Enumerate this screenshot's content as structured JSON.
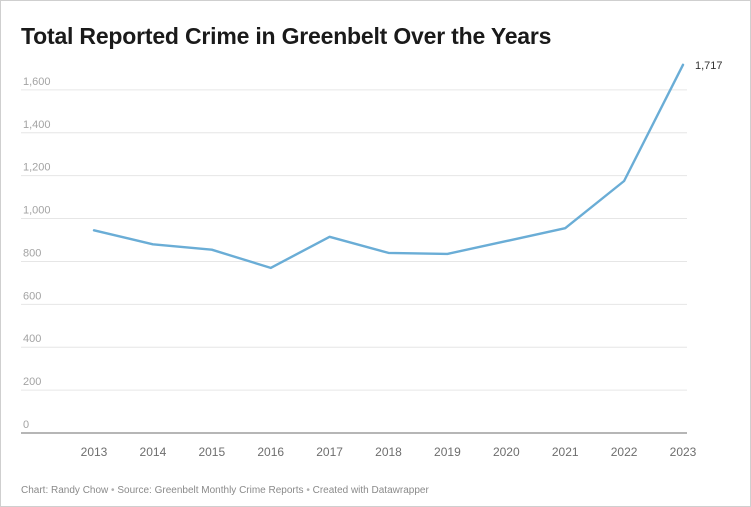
{
  "chart_data": {
    "type": "line",
    "title": "Total Reported Crime in Greenbelt Over the Years",
    "xlabel": "",
    "ylabel": "",
    "x": [
      "2013",
      "2014",
      "2015",
      "2016",
      "2017",
      "2018",
      "2019",
      "2020",
      "2021",
      "2022",
      "2023"
    ],
    "series": [
      {
        "values": [
          945,
          880,
          855,
          770,
          915,
          840,
          835,
          895,
          955,
          1175,
          1717
        ],
        "color": "#6aadd6"
      }
    ],
    "ylim": [
      0,
      1800
    ],
    "yticks": [
      0,
      200,
      400,
      600,
      800,
      1000,
      1200,
      1400,
      1600
    ],
    "ytick_labels": [
      "0",
      "200",
      "400",
      "600",
      "800",
      "1,000",
      "1,200",
      "1,400",
      "1,600"
    ],
    "grid": true,
    "annotations": [
      {
        "x": "2023",
        "text": "1,717"
      }
    ]
  },
  "footer": {
    "credit": "Chart: Randy Chow",
    "source": "Source: Greenbelt Monthly Crime Reports",
    "tool": "Created with Datawrapper",
    "separator": "•"
  }
}
